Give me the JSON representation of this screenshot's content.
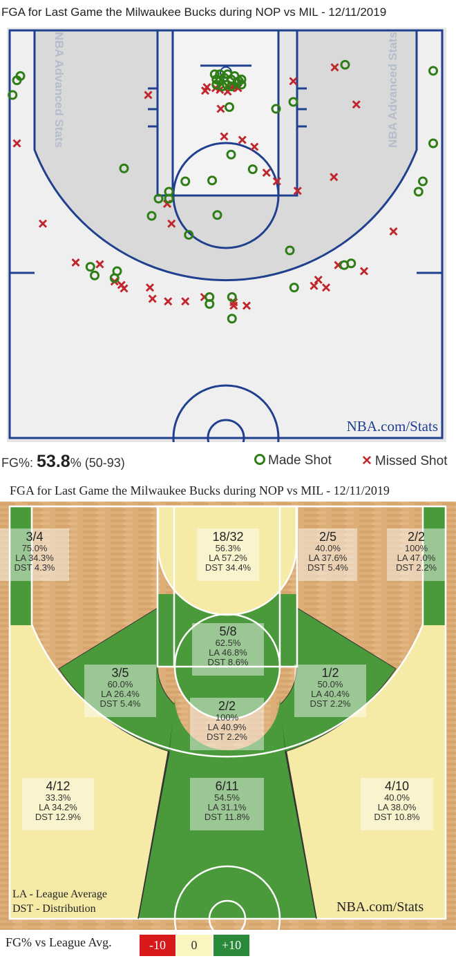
{
  "shot_chart": {
    "title": "FGA for Last Game the Milwaukee Bucks during NOP vs MIL - 12/11/2019",
    "watermark": "NBA Advanced Stats",
    "credit": "NBA.com/Stats",
    "fg_label": "FG%:",
    "fg_pct": "53.8",
    "fg_pct_unit": "%",
    "fg_made_att": "(50-93)",
    "legend_made": "Made Shot",
    "legend_missed": "Missed Shot",
    "colors": {
      "made": "#2e7d16",
      "missed": "#c0272d",
      "lines": "#1f3f8f"
    }
  },
  "chart_data": [
    {
      "type": "scatter",
      "title": "FGA for Last Game the Milwaukee Bucks during NOP vs MIL - 12/11/2019",
      "units": "court location, tenths of feet from basket",
      "series": [
        {
          "name": "Made Shot",
          "points": [
            [
              -238,
              0
            ],
            [
              -242,
              5
            ],
            [
              -247,
              22
            ],
            [
              138,
              -13
            ],
            [
              240,
              -6
            ],
            [
              240,
              78
            ],
            [
              78,
              30
            ],
            [
              58,
              38
            ],
            [
              4,
              36
            ],
            [
              -13,
              -2
            ],
            [
              -7,
              6
            ],
            [
              -2,
              2
            ],
            [
              6,
              4
            ],
            [
              13,
              8
            ],
            [
              18,
              10
            ],
            [
              -11,
              10
            ],
            [
              -118,
              107
            ],
            [
              -47,
              122
            ],
            [
              -16,
              121
            ],
            [
              6,
              91
            ],
            [
              31,
              108
            ],
            [
              -66,
              134
            ],
            [
              -78,
              142
            ],
            [
              -86,
              162
            ],
            [
              -10,
              161
            ],
            [
              -43,
              184
            ],
            [
              74,
              202
            ],
            [
              228,
              122
            ],
            [
              223,
              134
            ],
            [
              -157,
              221
            ],
            [
              -152,
              231
            ],
            [
              -126,
              226
            ],
            [
              -129,
              234
            ],
            [
              -19,
              256
            ],
            [
              -19,
              264
            ],
            [
              7,
              256
            ],
            [
              7,
              281
            ],
            [
              79,
              245
            ],
            [
              145,
              217
            ],
            [
              137,
              219
            ],
            [
              1,
              10
            ],
            [
              10,
              0
            ],
            [
              -7,
              -2
            ],
            [
              15,
              6
            ],
            [
              -4,
              12
            ],
            [
              6,
              12
            ],
            [
              -11,
              4
            ],
            [
              2,
              -2
            ],
            [
              -66,
              142
            ],
            [
              18,
              4
            ]
          ]
        },
        {
          "name": "Missed Shot",
          "points": [
            [
              -242,
              78
            ],
            [
              -212,
              171
            ],
            [
              -174,
              216
            ],
            [
              -146,
              218
            ],
            [
              -129,
              238
            ],
            [
              -121,
              242
            ],
            [
              -118,
              246
            ],
            [
              -88,
              245
            ],
            [
              -85,
              258
            ],
            [
              -67,
              261
            ],
            [
              -47,
              261
            ],
            [
              -25,
              256
            ],
            [
              9,
              266
            ],
            [
              24,
              266
            ],
            [
              9,
              262
            ],
            [
              102,
              243
            ],
            [
              107,
              236
            ],
            [
              116,
              245
            ],
            [
              130,
              219
            ],
            [
              160,
              226
            ],
            [
              194,
              180
            ],
            [
              126,
              -10
            ],
            [
              151,
              33
            ],
            [
              78,
              6
            ],
            [
              83,
              133
            ],
            [
              125,
              117
            ],
            [
              59,
              122
            ],
            [
              47,
              112
            ],
            [
              33,
              82
            ],
            [
              19,
              74
            ],
            [
              -2,
              70
            ],
            [
              -68,
              148
            ],
            [
              -63,
              171
            ],
            [
              -6,
              38
            ],
            [
              -24,
              17
            ],
            [
              -7,
              16
            ],
            [
              6,
              14
            ],
            [
              -22,
              13
            ],
            [
              -12,
              14
            ],
            [
              2,
              18
            ],
            [
              -90,
              22
            ],
            [
              9,
              12
            ],
            [
              14,
              14
            ]
          ]
        }
      ]
    },
    {
      "type": "heatmap",
      "title": "FGA for Last Game the Milwaukee Bucks during NOP vs MIL - 12/11/2019",
      "zones": [
        {
          "zone": "left-corner-3",
          "fgm_fga": "3/4",
          "pct": "75.0%",
          "la": "LA 34.3%",
          "dst": "DST 4.3%",
          "color": "#4a9a3c"
        },
        {
          "zone": "restricted-area",
          "fgm_fga": "18/32",
          "pct": "56.3%",
          "la": "LA 57.2%",
          "dst": "DST 34.4%",
          "color": "#f5eaa6"
        },
        {
          "zone": "right-baseline-mid",
          "fgm_fga": "2/5",
          "pct": "40.0%",
          "la": "LA 37.6%",
          "dst": "DST 5.4%",
          "color": "#f5eaa6"
        },
        {
          "zone": "right-corner-3",
          "fgm_fga": "2/2",
          "pct": "100%",
          "la": "LA 47.0%",
          "dst": "DST 2.2%",
          "color": "#4a9a3c"
        },
        {
          "zone": "paint-non-ra",
          "fgm_fga": "5/8",
          "pct": "62.5%",
          "la": "LA 46.8%",
          "dst": "DST 8.6%",
          "color": "#4a9a3c"
        },
        {
          "zone": "left-wing-mid",
          "fgm_fga": "3/5",
          "pct": "60.0%",
          "la": "LA 26.4%",
          "dst": "DST 5.4%",
          "color": "#4a9a3c"
        },
        {
          "zone": "right-wing-mid",
          "fgm_fga": "1/2",
          "pct": "50.0%",
          "la": "LA 40.4%",
          "dst": "DST 2.2%",
          "color": "#4a9a3c"
        },
        {
          "zone": "top-key-mid",
          "fgm_fga": "2/2",
          "pct": "100%",
          "la": "LA 40.9%",
          "dst": "DST 2.2%",
          "color": "#4a9a3c"
        },
        {
          "zone": "left-above-break-3",
          "fgm_fga": "4/12",
          "pct": "33.3%",
          "la": "LA 34.2%",
          "dst": "DST 12.9%",
          "color": "#f5eaa6"
        },
        {
          "zone": "center-3",
          "fgm_fga": "6/11",
          "pct": "54.5%",
          "la": "LA 31.1%",
          "dst": "DST 11.8%",
          "color": "#4a9a3c"
        },
        {
          "zone": "right-above-break-3",
          "fgm_fga": "4/10",
          "pct": "40.0%",
          "la": "LA 38.0%",
          "dst": "DST 10.8%",
          "color": "#f5eaa6"
        }
      ]
    }
  ],
  "zone_chart": {
    "title": "FGA for Last Game the Milwaukee Bucks during NOP vs MIL - 12/11/2019",
    "key_la": "LA - League Average",
    "key_dst": "DST - Distribution",
    "credit": "NBA.com/Stats",
    "scale_label": "FG% vs League Avg.",
    "scale": [
      {
        "label": "-10",
        "color": "#d7191c"
      },
      {
        "label": "0",
        "color": "#fbf5c0"
      },
      {
        "label": "+10",
        "color": "#2a8a3a"
      }
    ]
  }
}
